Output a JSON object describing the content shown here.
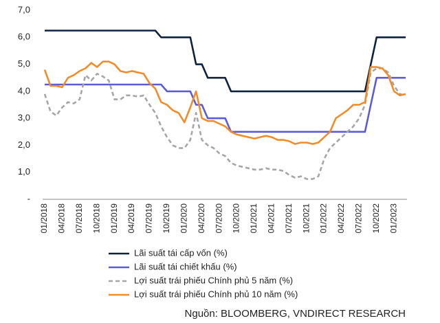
{
  "chart_data": {
    "type": "line",
    "categories": [
      "01/2018",
      null,
      null,
      "04/2018",
      null,
      null,
      "07/2018",
      null,
      null,
      "10/2018",
      null,
      null,
      "01/2019",
      null,
      null,
      "04/2019",
      null,
      null,
      "07/2019",
      null,
      null,
      "10/2019",
      null,
      null,
      "01/2020",
      null,
      null,
      "04/2020",
      null,
      null,
      "07/2020",
      null,
      null,
      "10/2020",
      null,
      null,
      "01/2021",
      null,
      null,
      "04/2021",
      null,
      null,
      "07/2021",
      null,
      null,
      "10/2021",
      null,
      null,
      "01/2022",
      null,
      null,
      "04/2022",
      null,
      null,
      "07/2022",
      null,
      null,
      "10/2022",
      null,
      null,
      "01/2023",
      null,
      null
    ],
    "ylim": [
      0,
      7
    ],
    "yticks": [
      {
        "value": 0,
        "label": "-"
      },
      {
        "value": 1,
        "label": "1,0"
      },
      {
        "value": 2,
        "label": "2,0"
      },
      {
        "value": 3,
        "label": "3,0"
      },
      {
        "value": 4,
        "label": "4,0"
      },
      {
        "value": 5,
        "label": "5,0"
      },
      {
        "value": 6,
        "label": "6,0"
      },
      {
        "value": 7,
        "label": "7,0"
      }
    ],
    "grid": false,
    "series": [
      {
        "name": "Lãi suất tái cấp vốn (%)",
        "color": "#0d2240",
        "dash": false,
        "values": [
          6.25,
          6.25,
          6.25,
          6.25,
          6.25,
          6.25,
          6.25,
          6.25,
          6.25,
          6.25,
          6.25,
          6.25,
          6.25,
          6.25,
          6.25,
          6.25,
          6.25,
          6.25,
          6.25,
          6.25,
          6,
          6,
          6,
          6,
          6,
          6,
          5,
          5,
          4.5,
          4.5,
          4.5,
          4.5,
          4,
          4,
          4,
          4,
          4,
          4,
          4,
          4,
          4,
          4,
          4,
          4,
          4,
          4,
          4,
          4,
          4,
          4,
          4,
          4,
          4,
          4,
          4,
          4,
          5,
          6,
          6,
          6,
          6,
          6,
          6
        ]
      },
      {
        "name": "Lãi suất tái chiết khấu (%)",
        "color": "#5b5bd6",
        "dash": false,
        "values": [
          4.25,
          4.25,
          4.25,
          4.25,
          4.25,
          4.25,
          4.25,
          4.25,
          4.25,
          4.25,
          4.25,
          4.25,
          4.25,
          4.25,
          4.25,
          4.25,
          4.25,
          4.25,
          4.25,
          4.25,
          4.25,
          4,
          4,
          4,
          4,
          4,
          3.5,
          3.5,
          3,
          3,
          3,
          3,
          2.5,
          2.5,
          2.5,
          2.5,
          2.5,
          2.5,
          2.5,
          2.5,
          2.5,
          2.5,
          2.5,
          2.5,
          2.5,
          2.5,
          2.5,
          2.5,
          2.5,
          2.5,
          2.5,
          2.5,
          2.5,
          2.5,
          2.5,
          2.5,
          3.5,
          4.5,
          4.5,
          4.5,
          4.5,
          4.5,
          4.5
        ]
      },
      {
        "name": "Lợi suất trái phiếu Chính phủ 5 năm (%)",
        "color": "#a6a6a6",
        "dash": true,
        "values": [
          3.9,
          3.25,
          3.1,
          3.4,
          3.6,
          3.55,
          3.7,
          4.6,
          4.4,
          4.65,
          4.55,
          4.4,
          3.7,
          3.7,
          3.85,
          3.85,
          3.8,
          3.85,
          3.5,
          3.2,
          2.7,
          2.3,
          2,
          1.9,
          1.9,
          2.2,
          3.2,
          2.2,
          2,
          1.9,
          1.7,
          1.6,
          1.35,
          1.25,
          1.2,
          1.15,
          1.1,
          1.1,
          1.15,
          1.1,
          1.1,
          1.05,
          0.9,
          0.8,
          0.85,
          0.75,
          0.75,
          0.85,
          1.5,
          1.9,
          2.1,
          2.3,
          2.5,
          2.7,
          3,
          3.5,
          4.7,
          4.85,
          4.85,
          4.7,
          4.2,
          3.9,
          3.85
        ]
      },
      {
        "name": "Lợi suất trái phiếu Chính phủ 10 năm (%)",
        "color": "#f28c28",
        "dash": false,
        "values": [
          4.8,
          4.2,
          4.2,
          4.15,
          4.5,
          4.6,
          4.75,
          4.85,
          5.05,
          4.9,
          5.1,
          5.1,
          5,
          4.75,
          4.7,
          4.75,
          4.7,
          4.65,
          4.3,
          4.1,
          3.6,
          3.5,
          3.3,
          3.2,
          2.85,
          3.4,
          4,
          3,
          2.9,
          2.9,
          2.8,
          2.7,
          2.5,
          2.4,
          2.35,
          2.3,
          2.25,
          2.3,
          2.35,
          2.3,
          2.2,
          2.2,
          2.15,
          2.05,
          2.1,
          2.1,
          2.05,
          2.1,
          2.3,
          2.5,
          3,
          3.15,
          3.3,
          3.5,
          3.5,
          3.6,
          4.9,
          4.9,
          4.85,
          4.6,
          4,
          3.85,
          3.9
        ]
      }
    ],
    "source": "Nguồn: BLOOMBERG, VNDIRECT RESEARCH"
  }
}
